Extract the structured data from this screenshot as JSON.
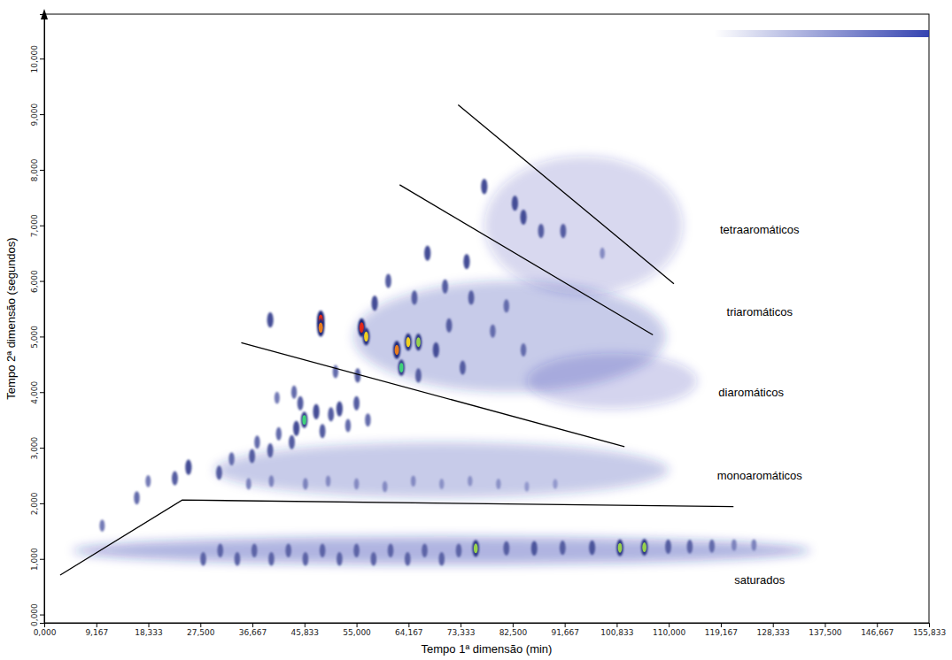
{
  "chart_data": {
    "type": "heatmap",
    "x_label": "Tempo 1ª dimensão (min)",
    "y_label": "Tempo 2ª dimensão (segundos)",
    "xlim": [
      0,
      155.833
    ],
    "ylim": [
      -0.15,
      10.8
    ],
    "xticks": [
      {
        "value": 0,
        "label": "0,000"
      },
      {
        "value": 9.167,
        "label": "9,167"
      },
      {
        "value": 18.333,
        "label": "18,333"
      },
      {
        "value": 27.5,
        "label": "27,500"
      },
      {
        "value": 36.667,
        "label": "36,667"
      },
      {
        "value": 45.833,
        "label": "45,833"
      },
      {
        "value": 55,
        "label": "55,000"
      },
      {
        "value": 64.167,
        "label": "64,167"
      },
      {
        "value": 73.333,
        "label": "73,333"
      },
      {
        "value": 82.5,
        "label": "82,500"
      },
      {
        "value": 91.667,
        "label": "91,667"
      },
      {
        "value": 100.833,
        "label": "100,833"
      },
      {
        "value": 110,
        "label": "110,000"
      },
      {
        "value": 119.167,
        "label": "119,167"
      },
      {
        "value": 128.333,
        "label": "128,333"
      },
      {
        "value": 137.5,
        "label": "137,500"
      },
      {
        "value": 146.667,
        "label": "146,667"
      },
      {
        "value": 155.833,
        "label": "155,833"
      }
    ],
    "yticks": [
      {
        "value": 0,
        "label": "0,000"
      },
      {
        "value": 1,
        "label": "1,000"
      },
      {
        "value": 2,
        "label": "2,000"
      },
      {
        "value": 3,
        "label": "3,000"
      },
      {
        "value": 4,
        "label": "4,000"
      },
      {
        "value": 5,
        "label": "5,000"
      },
      {
        "value": 6,
        "label": "6,000"
      },
      {
        "value": 7,
        "label": "7,000"
      },
      {
        "value": 8,
        "label": "8,000"
      },
      {
        "value": 9,
        "label": "9,000"
      },
      {
        "value": 10,
        "label": "10,000"
      }
    ],
    "color": "#1f2fa8",
    "zlim": [
      0,
      1
    ],
    "smears": {
      "x": [
        70,
        70,
        82,
        95,
        100
      ],
      "y": [
        1.15,
        2.6,
        5.0,
        7.0,
        4.2
      ],
      "width": [
        130,
        80,
        55,
        35,
        30
      ],
      "height": [
        0.5,
        1.0,
        2.0,
        2.5,
        1.0
      ],
      "intensity": [
        0.35,
        0.25,
        0.25,
        0.18,
        0.2
      ]
    },
    "column_bleed": {
      "x": [
        118,
        155.833
      ],
      "y": 10.45
    },
    "peaks": {
      "x": [
        10.2,
        16.3,
        18.3,
        23.0,
        25.4,
        30.8,
        33.0,
        36.6,
        37.5,
        39.8,
        41.3,
        43.6,
        44.4,
        45.8,
        47.9,
        49.0,
        50.5,
        52.0,
        53.5,
        55.0,
        57.0,
        44.0,
        41.0,
        36,
        40,
        46,
        50,
        55,
        60,
        65,
        70,
        75,
        80,
        85,
        90,
        39.8,
        48.7,
        48.7,
        55.9,
        56.7,
        62.1,
        64.1,
        65.9,
        62.9,
        58.2,
        67.5,
        60.6,
        65.2,
        70.6,
        74.4,
        75.2,
        71.3,
        69.0,
        79.0,
        81.4,
        84.4,
        73.7,
        55.2,
        51.3,
        45.1,
        65.9,
        77.5,
        82.9,
        84.4,
        87.5,
        91.4,
        98.3,
        28,
        31,
        34,
        37,
        40,
        43,
        46,
        49,
        52,
        55,
        58,
        61,
        64,
        67,
        70,
        73,
        76.0,
        81.4,
        86.3,
        91.3,
        96.5,
        101.4,
        105.7,
        109.9,
        113.7,
        117.6,
        121.5,
        125.0
      ],
      "y": [
        1.6,
        2.1,
        2.4,
        2.45,
        2.65,
        2.55,
        2.8,
        2.85,
        3.1,
        2.95,
        3.25,
        3.1,
        3.35,
        3.5,
        3.65,
        3.3,
        3.6,
        3.7,
        3.4,
        3.8,
        3.5,
        4.0,
        3.9,
        2.35,
        2.4,
        2.35,
        2.4,
        2.35,
        2.3,
        2.4,
        2.35,
        2.4,
        2.35,
        2.3,
        2.35,
        5.3,
        5.3,
        5.16,
        5.16,
        5.0,
        4.76,
        4.9,
        4.9,
        4.44,
        5.6,
        6.5,
        6.0,
        5.7,
        5.9,
        6.35,
        5.7,
        5.2,
        4.76,
        5.1,
        5.55,
        4.76,
        4.44,
        4.3,
        4.37,
        3.8,
        4.3,
        7.7,
        7.4,
        7.15,
        6.9,
        6.9,
        6.5,
        1.0,
        1.15,
        1.0,
        1.15,
        1.0,
        1.15,
        1.0,
        1.15,
        1.0,
        1.15,
        1.0,
        1.15,
        1.0,
        1.15,
        1.0,
        1.15,
        1.19,
        1.19,
        1.19,
        1.2,
        1.2,
        1.2,
        1.21,
        1.22,
        1.22,
        1.23,
        1.25,
        1.25
      ],
      "intensity": [
        0.4,
        0.5,
        0.4,
        0.6,
        0.7,
        0.6,
        0.5,
        0.6,
        0.5,
        0.6,
        0.5,
        0.6,
        0.7,
        0.8,
        0.7,
        0.6,
        0.6,
        0.7,
        0.5,
        0.6,
        0.5,
        0.5,
        0.4,
        0.35,
        0.35,
        0.35,
        0.3,
        0.3,
        0.3,
        0.3,
        0.25,
        0.25,
        0.25,
        0.2,
        0.2,
        0.7,
        1.0,
        0.95,
        1.0,
        0.9,
        0.95,
        0.9,
        0.85,
        0.8,
        0.7,
        0.7,
        0.6,
        0.6,
        0.6,
        0.7,
        0.6,
        0.6,
        0.7,
        0.5,
        0.5,
        0.5,
        0.6,
        0.6,
        0.5,
        0.6,
        0.6,
        0.7,
        0.7,
        0.7,
        0.6,
        0.6,
        0.3,
        0.55,
        0.55,
        0.55,
        0.55,
        0.55,
        0.55,
        0.55,
        0.55,
        0.55,
        0.55,
        0.55,
        0.55,
        0.55,
        0.55,
        0.55,
        0.55,
        0.85,
        0.6,
        0.65,
        0.6,
        0.65,
        0.85,
        0.85,
        0.6,
        0.55,
        0.5,
        0.35,
        0.35
      ]
    },
    "boundaries": [
      {
        "x": [
          2.8,
          24.3,
          121.4
        ],
        "y": [
          0.71,
          2.06,
          1.94
        ]
      },
      {
        "x": [
          34.7,
          102.2
        ],
        "y": [
          4.89,
          3.02
        ]
      },
      {
        "x": [
          62.6,
          107.2
        ],
        "y": [
          7.73,
          5.03
        ]
      },
      {
        "x": [
          72.9,
          110.9
        ],
        "y": [
          9.17,
          5.95
        ]
      }
    ],
    "annotations": [
      {
        "text": "tetraaromáticos",
        "x": 126,
        "y": 6.86
      },
      {
        "text": "triaromáticos",
        "x": 126,
        "y": 5.37
      },
      {
        "text": "diaromáticos",
        "x": 124.5,
        "y": 3.92
      },
      {
        "text": "monoaromáticos",
        "x": 126,
        "y": 2.43
      },
      {
        "text": "saturados",
        "x": 126,
        "y": 0.55
      }
    ]
  }
}
